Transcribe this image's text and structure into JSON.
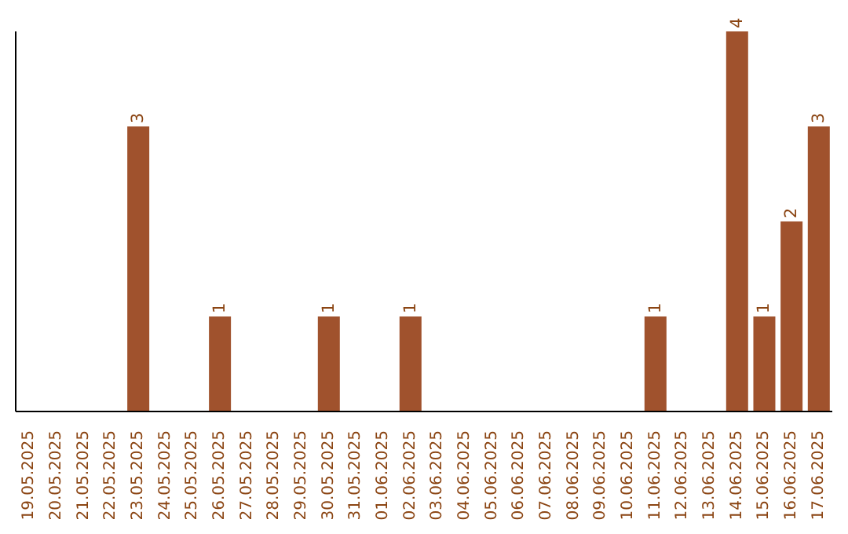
{
  "chart_data": {
    "type": "bar",
    "categories": [
      "19.05.2025",
      "20.05.2025",
      "21.05.2025",
      "22.05.2025",
      "23.05.2025",
      "24.05.2025",
      "25.05.2025",
      "26.05.2025",
      "27.05.2025",
      "28.05.2025",
      "29.05.2025",
      "30.05.2025",
      "31.05.2025",
      "01.06.2025",
      "02.06.2025",
      "03.06.2025",
      "04.06.2025",
      "05.06.2025",
      "06.06.2025",
      "07.06.2025",
      "08.06.2025",
      "09.06.2025",
      "10.06.2025",
      "11.06.2025",
      "12.06.2025",
      "13.06.2025",
      "14.06.2025",
      "15.06.2025",
      "16.06.2025",
      "17.06.2025"
    ],
    "values": [
      null,
      null,
      null,
      null,
      3,
      null,
      null,
      1,
      null,
      null,
      null,
      1,
      null,
      null,
      1,
      null,
      null,
      null,
      null,
      null,
      null,
      null,
      null,
      1,
      null,
      null,
      4,
      1,
      2,
      3
    ],
    "value_labels": [
      null,
      null,
      null,
      null,
      "3",
      null,
      null,
      "1",
      null,
      null,
      null,
      "1",
      null,
      null,
      "1",
      null,
      null,
      null,
      null,
      null,
      null,
      null,
      null,
      "1",
      null,
      null,
      "4",
      "1",
      "2",
      "3"
    ],
    "color": "#a0522d"
  }
}
